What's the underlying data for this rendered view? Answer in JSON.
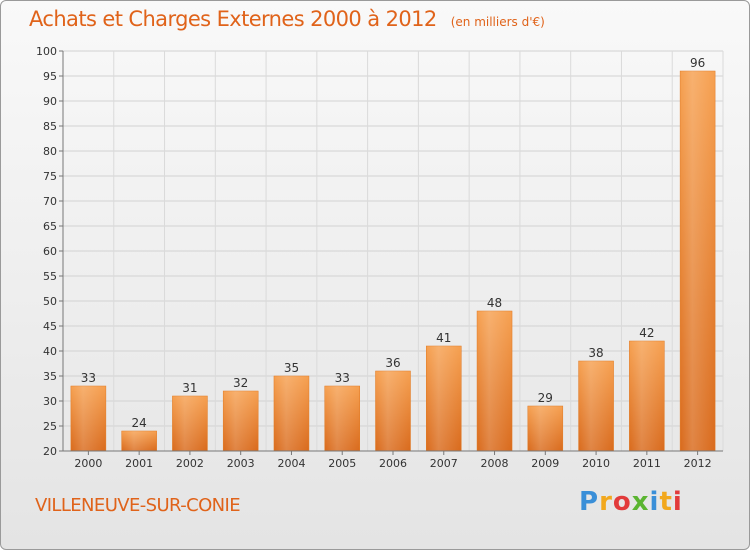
{
  "header": {
    "title": "Achats et Charges Externes 2000 à 2012",
    "unit": "(en milliers d'€)"
  },
  "footer": {
    "commune": "VILLENEUVE-SUR-CONIE",
    "logo_letters": [
      "P",
      "r",
      "o",
      "x",
      "i",
      "t",
      "i"
    ],
    "logo_colors": [
      "#3a8fd8",
      "#f2a81d",
      "#e23b3b",
      "#5bb531",
      "#3a8fd8",
      "#f2a81d",
      "#e23b3b"
    ]
  },
  "chart_data": {
    "type": "bar",
    "title": "Achats et Charges Externes 2000 à 2012",
    "subtitle": "(en milliers d'€)",
    "categories": [
      "2000",
      "2001",
      "2002",
      "2003",
      "2004",
      "2005",
      "2006",
      "2007",
      "2008",
      "2009",
      "2010",
      "2011",
      "2012"
    ],
    "values": [
      33,
      24,
      31,
      32,
      35,
      33,
      36,
      41,
      48,
      29,
      38,
      42,
      96
    ],
    "ylim": [
      20,
      100
    ],
    "yticks": [
      20,
      25,
      30,
      35,
      40,
      45,
      50,
      55,
      60,
      65,
      70,
      75,
      80,
      85,
      90,
      95,
      100
    ],
    "grid": true,
    "legend": "none",
    "bar_color": "#f28c28",
    "bar_color_dark": "#d9691a"
  }
}
